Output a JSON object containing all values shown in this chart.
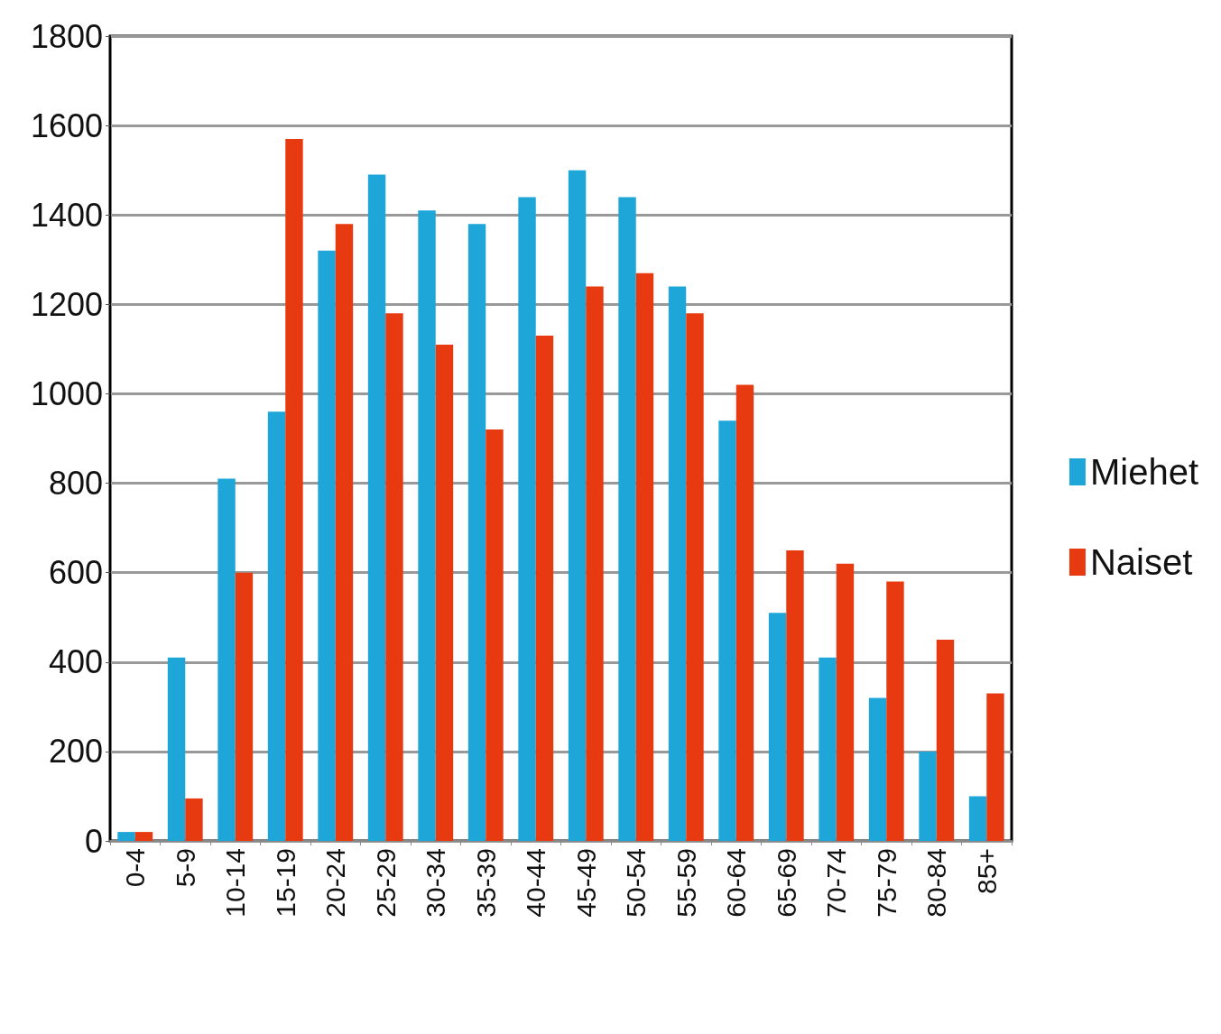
{
  "chart_data": {
    "type": "bar",
    "categories": [
      "0-4",
      "5-9",
      "10-14",
      "15-19",
      "20-24",
      "25-29",
      "30-34",
      "35-39",
      "40-44",
      "45-49",
      "50-54",
      "55-59",
      "60-64",
      "65-69",
      "70-74",
      "75-79",
      "80-84",
      "85+"
    ],
    "series": [
      {
        "name": "Miehet",
        "color": "#1ea6d8",
        "values": [
          20,
          410,
          810,
          960,
          1320,
          1490,
          1410,
          1380,
          1440,
          1500,
          1440,
          1240,
          940,
          510,
          410,
          320,
          200,
          100
        ]
      },
      {
        "name": "Naiset",
        "color": "#e83a10",
        "values": [
          20,
          95,
          600,
          1570,
          1380,
          1180,
          1110,
          920,
          1130,
          1240,
          1270,
          1180,
          1020,
          650,
          620,
          580,
          450,
          330
        ]
      }
    ],
    "ylim": [
      0,
      1800
    ],
    "yticks": [
      0,
      200,
      400,
      600,
      800,
      1000,
      1200,
      1400,
      1600,
      1800
    ],
    "grid": "y",
    "legend": "right"
  }
}
